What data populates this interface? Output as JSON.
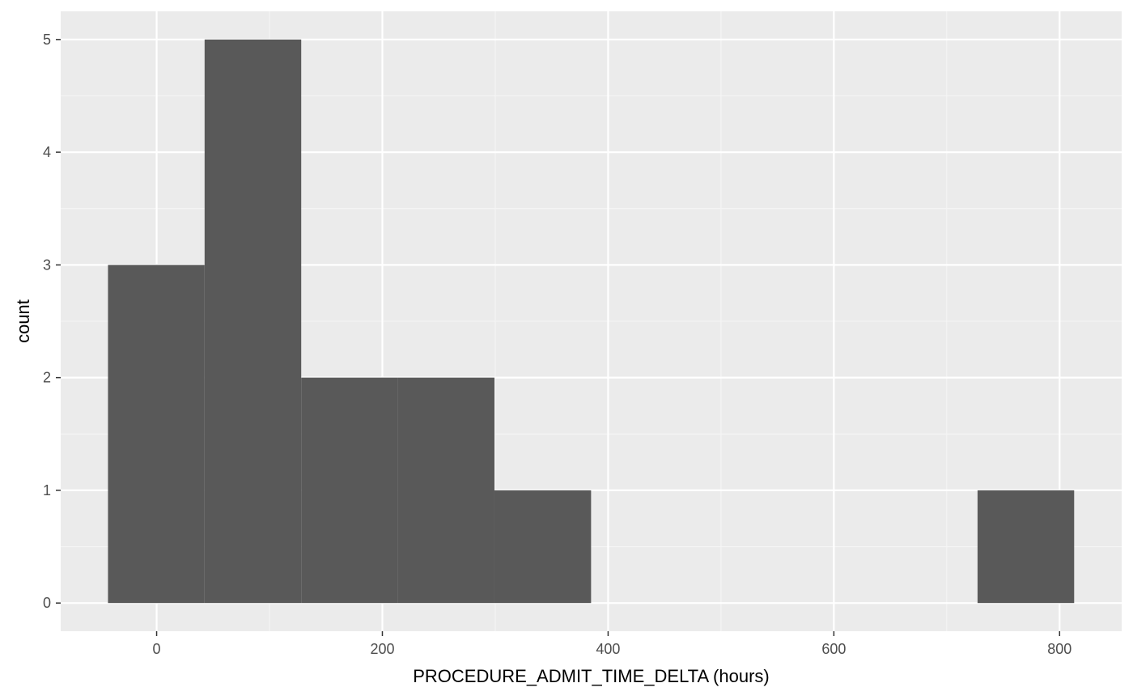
{
  "chart_data": {
    "type": "bar",
    "subtype": "histogram",
    "title": "",
    "xlabel": "PROCEDURE_ADMIT_TIME_DELTA (hours)",
    "ylabel": "count",
    "xlim": [
      -85,
      855
    ],
    "ylim": [
      -0.25,
      5.25
    ],
    "x_ticks": [
      0,
      200,
      400,
      600,
      800
    ],
    "y_ticks": [
      0,
      1,
      2,
      3,
      4,
      5
    ],
    "x_tick_labels": [
      "0",
      "200",
      "400",
      "600",
      "800"
    ],
    "y_tick_labels": [
      "0",
      "1",
      "2",
      "3",
      "4",
      "5"
    ],
    "bin_width": 85.6,
    "bins": [
      {
        "x0": -43.1,
        "x1": 42.5,
        "count": 3
      },
      {
        "x0": 42.5,
        "x1": 128.1,
        "count": 5
      },
      {
        "x0": 128.1,
        "x1": 213.7,
        "count": 2
      },
      {
        "x0": 213.7,
        "x1": 299.3,
        "count": 2
      },
      {
        "x0": 299.3,
        "x1": 384.9,
        "count": 1
      },
      {
        "x0": 384.9,
        "x1": 470.5,
        "count": 0
      },
      {
        "x0": 470.5,
        "x1": 556.1,
        "count": 0
      },
      {
        "x0": 556.1,
        "x1": 641.7,
        "count": 0
      },
      {
        "x0": 641.7,
        "x1": 727.3,
        "count": 0
      },
      {
        "x0": 727.3,
        "x1": 812.9,
        "count": 1
      }
    ],
    "grid": true,
    "legend": "none",
    "colors": {
      "panel_background": "#ebebeb",
      "grid_major": "#ffffff",
      "grid_minor": "#f5f5f5",
      "bar_fill": "#595959",
      "tick_color": "#333333"
    }
  }
}
